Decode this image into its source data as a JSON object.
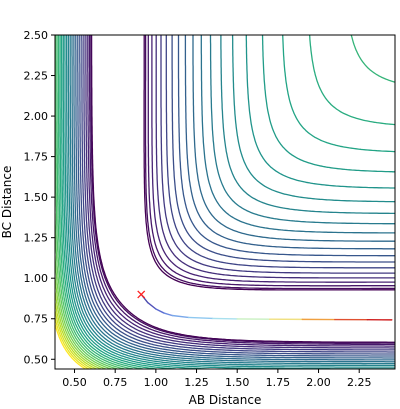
{
  "chart_data": {
    "type": "contour",
    "title": "",
    "xlabel": "AB Distance",
    "ylabel": "BC Distance",
    "xlim": [
      0.38,
      2.47
    ],
    "ylim": [
      0.44,
      2.5
    ],
    "x_ticks": [
      0.5,
      0.75,
      1.0,
      1.25,
      1.5,
      1.75,
      2.0,
      2.25
    ],
    "x_tick_labels": [
      "0.50",
      "0.75",
      "1.00",
      "1.25",
      "1.50",
      "1.75",
      "2.00",
      "2.25"
    ],
    "y_ticks": [
      0.5,
      0.75,
      1.0,
      1.25,
      1.5,
      1.75,
      2.0,
      2.25,
      2.5
    ],
    "y_tick_labels": [
      "0.50",
      "0.75",
      "1.00",
      "1.25",
      "1.50",
      "1.75",
      "2.00",
      "2.25",
      "2.50"
    ],
    "grid": false,
    "colormap": "viridis",
    "contour_levels": 30,
    "marker": {
      "symbol": "x",
      "color": "#ff2020",
      "x": 0.91,
      "y": 0.9
    },
    "trajectory": {
      "description": "",
      "x": [
        0.91,
        0.95,
        1.0,
        1.05,
        1.1,
        1.2,
        1.35,
        1.5,
        1.7,
        1.9,
        2.1,
        2.3,
        2.45
      ],
      "y": [
        0.9,
        0.85,
        0.81,
        0.785,
        0.77,
        0.758,
        0.752,
        0.749,
        0.747,
        0.746,
        0.745,
        0.744,
        0.743
      ]
    }
  }
}
